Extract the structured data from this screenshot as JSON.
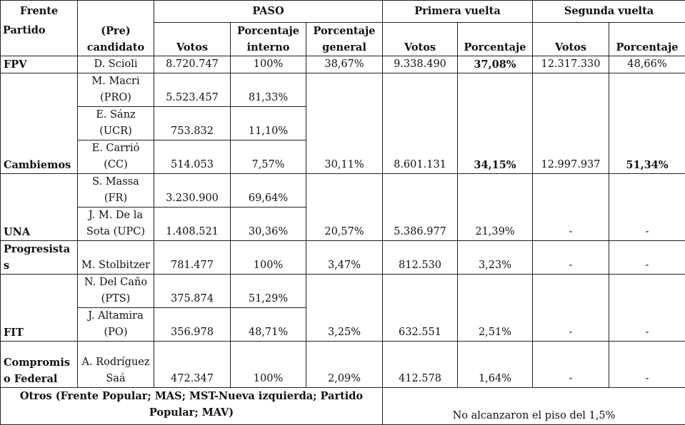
{
  "header": {
    "frente": "Frente",
    "partido": "Partido",
    "candidato": "(Pre) candidato",
    "paso": "PASO",
    "primera": "Primera vuelta",
    "segunda": "Segunda vuelta",
    "columns": [
      "Votos",
      "Porcentaje interno",
      "Porcentaje general",
      "Votos",
      "Porcentaje",
      "Votos",
      "Porcentaje"
    ]
  },
  "fronts": [
    {
      "name": "FPV",
      "candidates": [
        {
          "name": "D. Scioli",
          "votos": "8.720.747",
          "interno": "100%"
        }
      ],
      "general": "38,67%",
      "votos1": "9.338.490",
      "pct1": "37,08%",
      "votos2": "12.317.330",
      "pct2": "48,66%"
    },
    {
      "name": "Cambiemos",
      "candidates": [
        {
          "name": "M. Macri (PRO)",
          "votos": "5.523.457",
          "interno": "81,33%"
        },
        {
          "name": "E. Sánz (UCR)",
          "votos": "753.832",
          "interno": "11,10%"
        },
        {
          "name": "E. Carrió (CC)",
          "votos": "514.053",
          "interno": "7,57%"
        }
      ],
      "general": "30,11%",
      "votos1": "8.601.131",
      "pct1": "34,15%",
      "votos2": "12.997.937",
      "pct2": "51,34%"
    },
    {
      "name": "UNA",
      "candidates": [
        {
          "name": "S. Massa (FR)",
          "votos": "3.230.900",
          "interno": "69,64%"
        },
        {
          "name": "J. M. De la Sota (UPC)",
          "votos": "1.408.521",
          "interno": "30,36%"
        }
      ],
      "general": "20,57%",
      "votos1": "5.386.977",
      "pct1": "21,39%",
      "votos2": "-",
      "pct2": "-"
    },
    {
      "name": "Progresistas",
      "candidates": [
        {
          "name": "M. Stolbitzer",
          "votos": "781.477",
          "interno": "100%"
        }
      ],
      "general": "3,47%",
      "votos1": "812.530",
      "pct1": "3,23%",
      "votos2": "-",
      "pct2": "-"
    },
    {
      "name": "FIT",
      "candidates": [
        {
          "name": "N. Del Caño (PTS)",
          "votos": "375.874",
          "interno": "51,29%"
        },
        {
          "name": "J. Altamira (PO)",
          "votos": "356.978",
          "interno": "48,71%"
        }
      ],
      "general": "3,25%",
      "votos1": "632.551",
      "pct1": "2,51%",
      "votos2": "-",
      "pct2": "-"
    },
    {
      "name": "Compromiso Federal",
      "candidates": [
        {
          "name": "A. Rodríguez Saá",
          "votos": "472.347",
          "interno": "100%"
        }
      ],
      "general": "2,09%",
      "votos1": "412.578",
      "pct1": "1,64%",
      "votos2": "-",
      "pct2": "-"
    }
  ],
  "otros": {
    "label": "Otros (Frente Popular; MAS; MST-Nueva izquierda; Partido Popular; MAV)",
    "note": "No alcanzaron el piso del 1,5%"
  }
}
